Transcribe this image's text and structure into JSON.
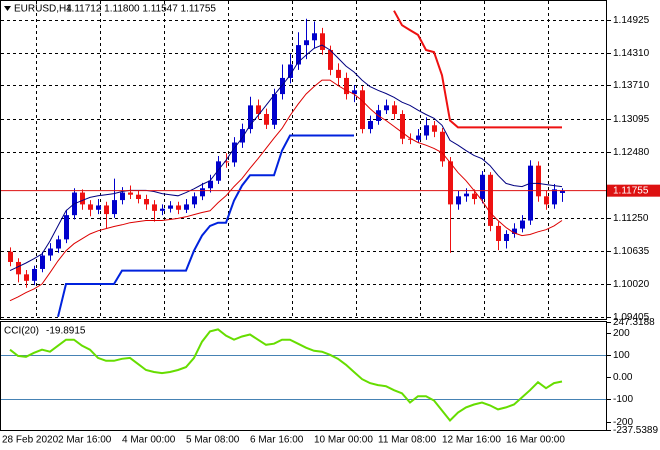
{
  "chart_data": [
    {
      "type": "candlestick",
      "symbol": "EURUSD,H4",
      "ohlc_label": "1.11712 1.11800 1.11547 1.11755",
      "categories": [
        "28 Feb 2020",
        null,
        null,
        null,
        null,
        null,
        null,
        "2 Mar 16:00",
        null,
        null,
        null,
        null,
        null,
        null,
        null,
        "4 Mar 00:00",
        null,
        null,
        null,
        null,
        null,
        null,
        null,
        "5 Mar 08:00",
        null,
        null,
        null,
        null,
        null,
        null,
        null,
        "6 Mar 16:00",
        null,
        null,
        null,
        null,
        null,
        null,
        null,
        "10 Mar 00:00",
        null,
        null,
        null,
        null,
        null,
        null,
        null,
        "11 Mar 08:00",
        null,
        null,
        null,
        null,
        null,
        null,
        null,
        "12 Mar 16:00",
        null,
        null,
        null,
        null,
        null,
        null,
        null,
        "16 Mar 00:00",
        null,
        null,
        null,
        null,
        null,
        null
      ],
      "open": [
        1.1062,
        1.1043,
        1.102,
        1.1008,
        1.103,
        1.1055,
        1.1068,
        1.1085,
        1.113,
        1.1172,
        1.115,
        1.114,
        1.1148,
        1.1132,
        1.1158,
        1.1172,
        1.1168,
        1.116,
        1.115,
        1.1138,
        1.1142,
        1.1148,
        1.114,
        1.115,
        1.1165,
        1.118,
        1.1194,
        1.123,
        1.1228,
        1.1265,
        1.129,
        1.1334,
        1.1318,
        1.1298,
        1.1355,
        1.1385,
        1.141,
        1.1446,
        1.1455,
        1.1468,
        1.1437,
        1.14,
        1.1385,
        1.1355,
        1.1362,
        1.129,
        1.1305,
        1.1325,
        1.1334,
        1.1318,
        1.1272,
        1.127,
        1.1278,
        1.1297,
        1.1285,
        1.123,
        1.115,
        1.1165,
        1.117,
        1.116,
        1.1205,
        1.111,
        1.1082,
        1.1095,
        1.1105,
        1.112,
        1.1222,
        1.1165,
        1.115,
        1.11712
      ],
      "high": [
        1.107,
        1.105,
        1.1028,
        1.1036,
        1.1062,
        1.1078,
        1.1092,
        1.114,
        1.118,
        1.1178,
        1.1158,
        1.116,
        1.1155,
        1.1198,
        1.1182,
        1.1185,
        1.1176,
        1.1168,
        1.1158,
        1.115,
        1.1156,
        1.1155,
        1.116,
        1.1172,
        1.119,
        1.1205,
        1.124,
        1.1245,
        1.1275,
        1.13,
        1.135,
        1.1345,
        1.1328,
        1.1365,
        1.141,
        1.143,
        1.147,
        1.1495,
        1.149,
        1.1478,
        1.1445,
        1.1412,
        1.1395,
        1.1372,
        1.137,
        1.1315,
        1.1335,
        1.1345,
        1.1342,
        1.1325,
        1.1282,
        1.129,
        1.1312,
        1.1305,
        1.1292,
        1.1238,
        1.1175,
        1.118,
        1.1178,
        1.1212,
        1.121,
        1.1118,
        1.1102,
        1.1115,
        1.113,
        1.1232,
        1.123,
        1.1175,
        1.1188,
        1.118
      ],
      "low": [
        1.1035,
        1.1005,
        1.0995,
        1.1,
        1.1024,
        1.1045,
        1.106,
        1.1078,
        1.1122,
        1.114,
        1.1128,
        1.1132,
        1.1105,
        1.1125,
        1.115,
        1.116,
        1.1152,
        1.114,
        1.1118,
        1.113,
        1.1135,
        1.1132,
        1.1134,
        1.1143,
        1.1158,
        1.1172,
        1.1188,
        1.1218,
        1.122,
        1.1255,
        1.1282,
        1.1308,
        1.129,
        1.129,
        1.1345,
        1.1375,
        1.14,
        1.142,
        1.144,
        1.1428,
        1.139,
        1.1372,
        1.1345,
        1.134,
        1.1282,
        1.1282,
        1.1298,
        1.1318,
        1.1308,
        1.1262,
        1.1262,
        1.1265,
        1.127,
        1.1275,
        1.122,
        1.106,
        1.114,
        1.1155,
        1.115,
        1.1152,
        1.11,
        1.1065,
        1.1068,
        1.1088,
        1.1098,
        1.1112,
        1.1155,
        1.114,
        1.1142,
        1.11547
      ],
      "close": [
        1.1043,
        1.102,
        1.1008,
        1.103,
        1.1055,
        1.1068,
        1.1085,
        1.113,
        1.1172,
        1.115,
        1.114,
        1.1148,
        1.1132,
        1.1158,
        1.1172,
        1.1168,
        1.116,
        1.115,
        1.1138,
        1.1142,
        1.1148,
        1.114,
        1.115,
        1.1165,
        1.118,
        1.1194,
        1.123,
        1.1228,
        1.1265,
        1.129,
        1.1334,
        1.1318,
        1.1298,
        1.1355,
        1.1385,
        1.141,
        1.1446,
        1.1455,
        1.1468,
        1.1437,
        1.14,
        1.1385,
        1.1355,
        1.1362,
        1.129,
        1.1305,
        1.1325,
        1.1334,
        1.1318,
        1.1272,
        1.127,
        1.1278,
        1.1297,
        1.1285,
        1.123,
        1.115,
        1.1165,
        1.117,
        1.116,
        1.1205,
        1.111,
        1.1082,
        1.1095,
        1.1105,
        1.112,
        1.1222,
        1.1165,
        1.115,
        1.1178,
        1.11755
      ],
      "up_color": "#0000cc",
      "down_color": "#ee1111",
      "overlays": [
        {
          "color": "#000080",
          "width": 1,
          "values": [
            1.1027,
            1.1034,
            1.1041,
            1.1049,
            1.1058,
            1.1082,
            1.111,
            1.1138,
            1.1151,
            1.1157,
            1.1163,
            1.1166,
            1.1168,
            1.117,
            1.1174,
            1.1176,
            1.1176,
            1.1176,
            1.1174,
            1.117,
            1.1168,
            1.1166,
            1.1172,
            1.1179,
            1.1187,
            1.1194,
            1.1213,
            1.1232,
            1.1254,
            1.1273,
            1.1297,
            1.1315,
            1.1334,
            1.1353,
            1.1371,
            1.139,
            1.1414,
            1.1427,
            1.144,
            1.1446,
            1.1437,
            1.1422,
            1.1407,
            1.1396,
            1.1381,
            1.1369,
            1.1362,
            1.1356,
            1.1349,
            1.134,
            1.1334,
            1.1325,
            1.1317,
            1.131,
            1.1297,
            1.1269,
            1.126,
            1.125,
            1.1241,
            1.1235,
            1.1222,
            1.1204,
            1.1189,
            1.1185,
            1.1183,
            1.1189,
            1.1189,
            1.1187,
            1.1185,
            1.1183
          ]
        },
        {
          "color": "#dd0000",
          "width": 1,
          "values": [
            1.0971,
            1.0978,
            1.0986,
            1.0993,
            1.1002,
            1.1023,
            1.1045,
            1.1064,
            1.1077,
            1.1086,
            1.1095,
            1.1101,
            1.1105,
            1.1109,
            1.1112,
            1.1116,
            1.1118,
            1.112,
            1.112,
            1.112,
            1.1122,
            1.1124,
            1.1127,
            1.1131,
            1.1135,
            1.1138,
            1.1153,
            1.1166,
            1.1183,
            1.1198,
            1.1217,
            1.1235,
            1.1254,
            1.1273,
            1.1291,
            1.1315,
            1.1336,
            1.1355,
            1.1369,
            1.1381,
            1.1381,
            1.1371,
            1.1362,
            1.1355,
            1.1343,
            1.1328,
            1.1315,
            1.1306,
            1.1295,
            1.1284,
            1.1273,
            1.1265,
            1.126,
            1.1254,
            1.1246,
            1.1228,
            1.1209,
            1.1194,
            1.1176,
            1.1157,
            1.1135,
            1.112,
            1.1107,
            1.1097,
            1.1092,
            1.1094,
            1.1099,
            1.1103,
            1.111,
            1.112
          ]
        },
        {
          "color": "#0022dd",
          "width": 2,
          "values": [
            null,
            null,
            null,
            null,
            null,
            null,
            1.0941,
            1.1002,
            1.1002,
            1.1002,
            1.1002,
            1.1002,
            1.1002,
            1.1002,
            1.1027,
            1.1027,
            1.1027,
            1.1027,
            1.1027,
            1.1027,
            1.1027,
            1.1027,
            1.1027,
            1.1064,
            1.1092,
            1.111,
            1.1116,
            1.1116,
            1.1157,
            1.1185,
            1.1204,
            1.1204,
            1.1204,
            1.1204,
            1.125,
            1.1278,
            1.1278,
            1.1278,
            1.1278,
            1.1278,
            1.1278,
            1.1278,
            1.1278,
            1.1278,
            null,
            null,
            null,
            null,
            null,
            null,
            null,
            null,
            null,
            null,
            null,
            null,
            null,
            null,
            null,
            null,
            null,
            null,
            null,
            null,
            null,
            null,
            null,
            null,
            null,
            null
          ]
        },
        {
          "color": "#ee1111",
          "width": 2,
          "values": [
            null,
            null,
            null,
            null,
            null,
            null,
            null,
            null,
            null,
            null,
            null,
            null,
            null,
            null,
            null,
            null,
            null,
            null,
            null,
            null,
            null,
            null,
            null,
            null,
            null,
            null,
            null,
            null,
            null,
            null,
            null,
            null,
            null,
            null,
            null,
            null,
            null,
            null,
            null,
            null,
            null,
            null,
            null,
            null,
            null,
            null,
            null,
            null,
            1.151,
            1.1483,
            1.1474,
            1.1465,
            1.1437,
            1.1433,
            1.139,
            1.1306,
            1.1293,
            1.1293,
            1.1293,
            1.1293,
            1.1293,
            1.1293,
            1.1293,
            1.1293,
            1.1293,
            1.1293,
            1.1293,
            1.1293,
            1.1293,
            1.1293
          ]
        }
      ],
      "current_price": {
        "value": 1.11755,
        "label": "1.11755"
      },
      "current_color": "#dd1111",
      "ylim": [
        1.0937,
        1.1528
      ],
      "yticks": [
        1.14925,
        {
          "value": 1.1431,
          "label": "1.14310"
        },
        {
          "value": 1.1371,
          "label": "1.13710"
        },
        1.13095,
        {
          "value": 1.1248,
          "label": "1.12480"
        },
        {
          "value": 1.1125,
          "label": "1.11250"
        },
        1.10635,
        {
          "value": 1.1002,
          "label": "1.10020"
        },
        1.09405
      ],
      "grid": true
    },
    {
      "type": "line",
      "title": "CCI(20)",
      "series": [
        {
          "color": "#66dd00",
          "values": [
            123,
            95,
            91,
            109,
            123,
            114,
            141,
            168,
            168,
            141,
            123,
            86,
            73,
            73,
            82,
            86,
            59,
            32,
            23,
            18,
            23,
            32,
            45,
            86,
            159,
            205,
            214,
            186,
            168,
            182,
            191,
            168,
            145,
            150,
            168,
            168,
            150,
            132,
            118,
            114,
            100,
            82,
            55,
            23,
            -9,
            -27,
            -36,
            -41,
            -59,
            -73,
            -114,
            -86,
            -86,
            -105,
            -150,
            -195,
            -159,
            -136,
            -123,
            -114,
            -127,
            -145,
            -136,
            -123,
            -91,
            -59,
            -23,
            -50,
            -27,
            -19.8915
          ]
        }
      ],
      "levels": [
        100,
        -100
      ],
      "level_color": "#4682b4",
      "ylim": [
        -237.5389,
        247.3188
      ],
      "yticks": [
        247.3188,
        200,
        100,
        {
          "value": 0,
          "label": "0.00"
        },
        -100,
        -200,
        -237.5389
      ]
    }
  ]
}
